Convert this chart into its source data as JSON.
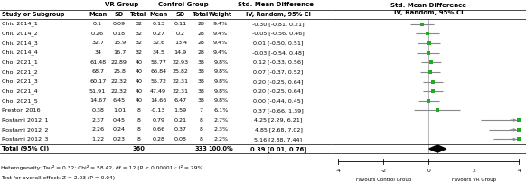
{
  "studies": [
    {
      "name": "Chiu 2014_1",
      "vr_mean": "0.1",
      "vr_sd": "0.09",
      "vr_n": "32",
      "ctrl_mean": "0.13",
      "ctrl_sd": "0.11",
      "ctrl_n": "28",
      "weight": "9.4%",
      "smd": -0.3,
      "ci_low": -0.81,
      "ci_high": 0.21,
      "smd_str": "-0.30 [-0.81, 0.21]"
    },
    {
      "name": "Chiu 2014_2",
      "vr_mean": "0.26",
      "vr_sd": "0.18",
      "vr_n": "32",
      "ctrl_mean": "0.27",
      "ctrl_sd": "0.2",
      "ctrl_n": "28",
      "weight": "9.4%",
      "smd": -0.05,
      "ci_low": -0.56,
      "ci_high": 0.46,
      "smd_str": "-0.05 [-0.56, 0.46]"
    },
    {
      "name": "Chiu 2014_3",
      "vr_mean": "32.7",
      "vr_sd": "15.9",
      "vr_n": "32",
      "ctrl_mean": "32.6",
      "ctrl_sd": "13.4",
      "ctrl_n": "28",
      "weight": "9.4%",
      "smd": 0.01,
      "ci_low": -0.5,
      "ci_high": 0.51,
      "smd_str": "0.01 [-0.50, 0.51]"
    },
    {
      "name": "Chiu 2014_4",
      "vr_mean": "34",
      "vr_sd": "16.7",
      "vr_n": "32",
      "ctrl_mean": "34.5",
      "ctrl_sd": "14.9",
      "ctrl_n": "28",
      "weight": "9.4%",
      "smd": -0.03,
      "ci_low": -0.54,
      "ci_high": 0.48,
      "smd_str": "-0.03 [-0.54, 0.48]"
    },
    {
      "name": "Choi 2021_1",
      "vr_mean": "61.48",
      "vr_sd": "22.89",
      "vr_n": "40",
      "ctrl_mean": "58.77",
      "ctrl_sd": "22.93",
      "ctrl_n": "38",
      "weight": "9.8%",
      "smd": 0.12,
      "ci_low": -0.33,
      "ci_high": 0.56,
      "smd_str": "0.12 [-0.33, 0.56]"
    },
    {
      "name": "Choi 2021_2",
      "vr_mean": "68.7",
      "vr_sd": "25.8",
      "vr_n": "40",
      "ctrl_mean": "66.84",
      "ctrl_sd": "25.82",
      "ctrl_n": "38",
      "weight": "9.8%",
      "smd": 0.07,
      "ci_low": -0.37,
      "ci_high": 0.52,
      "smd_str": "0.07 [-0.37, 0.52]"
    },
    {
      "name": "Choi 2021_3",
      "vr_mean": "60.17",
      "vr_sd": "22.32",
      "vr_n": "40",
      "ctrl_mean": "55.72",
      "ctrl_sd": "22.31",
      "ctrl_n": "38",
      "weight": "9.8%",
      "smd": 0.2,
      "ci_low": -0.25,
      "ci_high": 0.64,
      "smd_str": "0.20 [-0.25, 0.64]"
    },
    {
      "name": "Choi 2021_4",
      "vr_mean": "51.91",
      "vr_sd": "22.32",
      "vr_n": "40",
      "ctrl_mean": "47.49",
      "ctrl_sd": "22.31",
      "ctrl_n": "38",
      "weight": "9.8%",
      "smd": 0.2,
      "ci_low": -0.25,
      "ci_high": 0.64,
      "smd_str": "0.20 [-0.25, 0.64]"
    },
    {
      "name": "Choi 2021_5",
      "vr_mean": "14.67",
      "vr_sd": "6.45",
      "vr_n": "40",
      "ctrl_mean": "14.66",
      "ctrl_sd": "6.47",
      "ctrl_n": "38",
      "weight": "9.8%",
      "smd": 0.0,
      "ci_low": -0.44,
      "ci_high": 0.45,
      "smd_str": "0.00 [-0.44, 0.45]"
    },
    {
      "name": "Preston 2016",
      "vr_mean": "0.38",
      "vr_sd": "1.01",
      "vr_n": "8",
      "ctrl_mean": "-0.13",
      "ctrl_sd": "1.59",
      "ctrl_n": "7",
      "weight": "6.1%",
      "smd": 0.37,
      "ci_low": -0.66,
      "ci_high": 1.39,
      "smd_str": "0.37 [-0.66, 1.39]"
    },
    {
      "name": "Rostami 2012_1",
      "vr_mean": "2.37",
      "vr_sd": "0.45",
      "vr_n": "8",
      "ctrl_mean": "0.79",
      "ctrl_sd": "0.21",
      "ctrl_n": "8",
      "weight": "2.7%",
      "smd": 4.25,
      "ci_low": 2.29,
      "ci_high": 6.21,
      "smd_str": "4.25 [2.29, 6.21]"
    },
    {
      "name": "Rostami 2012_2",
      "vr_mean": "2.26",
      "vr_sd": "0.24",
      "vr_n": "8",
      "ctrl_mean": "0.66",
      "ctrl_sd": "0.37",
      "ctrl_n": "8",
      "weight": "2.3%",
      "smd": 4.85,
      "ci_low": 2.68,
      "ci_high": 7.02,
      "smd_str": "4.85 [2.68, 7.02]"
    },
    {
      "name": "Rostami 2012_3",
      "vr_mean": "1.22",
      "vr_sd": "0.23",
      "vr_n": "8",
      "ctrl_mean": "0.28",
      "ctrl_sd": "0.08",
      "ctrl_n": "8",
      "weight": "2.2%",
      "smd": 5.16,
      "ci_low": 2.88,
      "ci_high": 7.44,
      "smd_str": "5.16 [2.88, 7.44]"
    }
  ],
  "total": {
    "vr_n": "360",
    "ctrl_n": "333",
    "weight": "100.0%",
    "smd": 0.39,
    "ci_low": 0.01,
    "ci_high": 0.76,
    "smd_str": "0.39 [0.01, 0.76]"
  },
  "heterogeneity": "Heterogeneity: Tau² = 0.32; Chi² = 58.42, df = 12 (P < 0.00001); I² = 79%",
  "overall_effect": "Test for overall effect: Z = 2.03 (P = 0.04)",
  "xmin": -4,
  "xmax": 4,
  "xticks": [
    -4,
    -2,
    0,
    2,
    4
  ],
  "xlabel_left": "Favours Control Group",
  "xlabel_right": "Favours VR Group",
  "point_color": "#22aa22",
  "diamond_color": "#000000",
  "ci_line_color": "#888888",
  "text_color": "#000000",
  "bg_color": "#ffffff"
}
